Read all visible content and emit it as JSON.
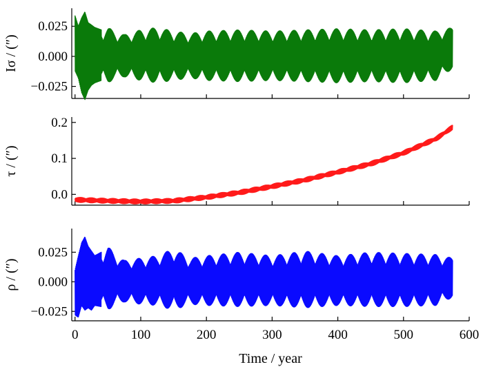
{
  "chart_data": [
    {
      "type": "line",
      "ylabel": "Iσ / (″)",
      "ylim": [
        -0.035,
        0.04
      ],
      "yticks": [
        -0.025,
        0.0,
        0.025
      ],
      "ytick_labels": [
        "−0.025",
        "0.000",
        "0.025"
      ],
      "xlim": [
        -5,
        600
      ],
      "xticks": [
        0,
        100,
        200,
        300,
        400,
        500,
        600
      ],
      "series": [
        {
          "color": "#0a7a0a",
          "x_range": [
            0,
            575
          ],
          "envelope_x": [
            0,
            5,
            10,
            15,
            20,
            25,
            30,
            40,
            50,
            60,
            75,
            100,
            125,
            150,
            175,
            200,
            250,
            300,
            350,
            400,
            450,
            500,
            550,
            575
          ],
          "envelope_upper": [
            0.034,
            0.025,
            0.032,
            0.037,
            0.028,
            0.026,
            0.024,
            0.022,
            0.024,
            0.021,
            0.018,
            0.022,
            0.024,
            0.021,
            0.019,
            0.021,
            0.022,
            0.021,
            0.022,
            0.023,
            0.022,
            0.023,
            0.021,
            0.024
          ],
          "envelope_lower": [
            -0.012,
            -0.018,
            -0.03,
            -0.036,
            -0.028,
            -0.024,
            -0.022,
            -0.02,
            -0.022,
            -0.019,
            -0.017,
            -0.02,
            -0.022,
            -0.02,
            -0.018,
            -0.02,
            -0.021,
            -0.02,
            -0.021,
            -0.022,
            -0.021,
            -0.022,
            -0.02,
            -0.01
          ]
        }
      ]
    },
    {
      "type": "line",
      "ylabel": "τ / (″)",
      "ylim": [
        -0.03,
        0.215
      ],
      "yticks": [
        0.0,
        0.1,
        0.2
      ],
      "ytick_labels": [
        "0.0",
        "0.1",
        "0.2"
      ],
      "xlim": [
        -5,
        600
      ],
      "xticks": [
        0,
        100,
        200,
        300,
        400,
        500,
        600
      ],
      "series": [
        {
          "color": "#ff1a1a",
          "x_range": [
            0,
            575
          ],
          "trend_x": [
            0,
            50,
            100,
            150,
            200,
            250,
            300,
            350,
            400,
            450,
            500,
            550,
            575
          ],
          "trend_y": [
            -0.015,
            -0.018,
            -0.02,
            -0.018,
            -0.008,
            0.005,
            0.022,
            0.04,
            0.062,
            0.085,
            0.115,
            0.155,
            0.187
          ],
          "oscillation_amplitude": 0.007
        }
      ]
    },
    {
      "type": "line",
      "ylabel": "ρ / (″)",
      "ylim": [
        -0.033,
        0.045
      ],
      "yticks": [
        -0.025,
        0.0,
        0.025
      ],
      "ytick_labels": [
        "−0.025",
        "0.000",
        "0.025"
      ],
      "xlim": [
        -5,
        600
      ],
      "xticks": [
        0,
        100,
        200,
        300,
        400,
        500,
        600
      ],
      "xtick_labels": [
        "0",
        "100",
        "200",
        "300",
        "400",
        "500",
        "600"
      ],
      "xlabel": "Time / year",
      "series": [
        {
          "color": "#0a0aff",
          "x_range": [
            0,
            575
          ],
          "envelope_x": [
            0,
            5,
            10,
            15,
            20,
            25,
            30,
            40,
            50,
            60,
            75,
            100,
            125,
            150,
            175,
            200,
            250,
            300,
            350,
            400,
            450,
            500,
            550,
            575
          ],
          "envelope_upper": [
            0.01,
            0.022,
            0.033,
            0.038,
            0.03,
            0.026,
            0.022,
            0.025,
            0.03,
            0.024,
            0.018,
            0.02,
            0.022,
            0.028,
            0.02,
            0.022,
            0.025,
            0.022,
            0.026,
            0.022,
            0.025,
            0.024,
            0.023,
            0.02
          ],
          "envelope_lower": [
            -0.028,
            -0.03,
            -0.02,
            -0.024,
            -0.022,
            -0.024,
            -0.02,
            -0.021,
            -0.024,
            -0.02,
            -0.017,
            -0.019,
            -0.02,
            -0.024,
            -0.019,
            -0.02,
            -0.021,
            -0.02,
            -0.022,
            -0.02,
            -0.021,
            -0.021,
            -0.02,
            -0.013
          ]
        }
      ]
    }
  ]
}
